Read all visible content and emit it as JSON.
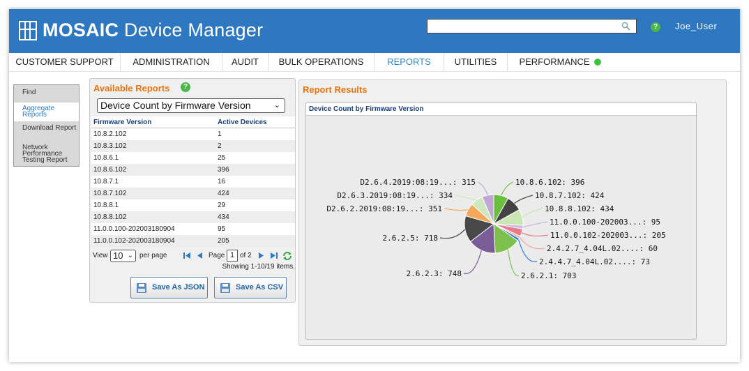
{
  "app": {
    "brand_bold": "MOSAIC",
    "brand_rest": " Device Manager",
    "search_placeholder": "",
    "user": "Joe_User",
    "help_glyph": "?"
  },
  "nav": {
    "items": [
      {
        "label": "CUSTOMER SUPPORT"
      },
      {
        "label": "ADMINISTRATION"
      },
      {
        "label": "AUDIT"
      },
      {
        "label": "BULK OPERATIONS"
      },
      {
        "label": "REPORTS"
      },
      {
        "label": "UTILITIES"
      },
      {
        "label": "PERFORMANCE"
      }
    ],
    "active": "REPORTS",
    "performance_status_color": "#3fc43f"
  },
  "left_menu": {
    "items": [
      {
        "label": "Find"
      },
      {
        "label": "Aggregate Reports"
      },
      {
        "label": "Download Report"
      },
      {
        "label": "Network Performance Testing Report"
      }
    ],
    "selected": "Aggregate Reports"
  },
  "available_reports": {
    "title": "Available Reports",
    "selected_report": "Device Count by Firmware Version",
    "columns": [
      "Firmware Version",
      "Active Devices"
    ],
    "rows": [
      [
        "10.8.2.102",
        "1"
      ],
      [
        "10.8.3.102",
        "2"
      ],
      [
        "10.8.6.1",
        "25"
      ],
      [
        "10.8.6.102",
        "396"
      ],
      [
        "10.8.7.1",
        "16"
      ],
      [
        "10.8.7.102",
        "424"
      ],
      [
        "10.8.8.1",
        "29"
      ],
      [
        "10.8.8.102",
        "434"
      ],
      [
        "11.0.0.100-202003180904",
        "95"
      ],
      [
        "11.0.0.102-202003180904",
        "205"
      ]
    ],
    "pager": {
      "view_label": "View",
      "per_page_value": "10",
      "per_page_label": "per page",
      "page_label": "Page",
      "current_page": "1",
      "of_pages": "of 2",
      "showing": "Showing 1-10/19 items."
    },
    "save_json_label": "Save As JSON",
    "save_csv_label": "Save As CSV"
  },
  "report_results": {
    "title": "Report Results",
    "chart_title": "Device Count by Firmware Version"
  },
  "colors": {
    "header_blue": "#2d78c0",
    "accent_orange": "#e8730c",
    "help_green": "#4cb748"
  },
  "chart_data": {
    "type": "pie",
    "title": "Device Count by Firmware Version",
    "slices": [
      {
        "label": "10.8.6.102",
        "value": 396,
        "color": "#6bbf3f"
      },
      {
        "label": "10.8.7.102",
        "value": 424,
        "color": "#434343"
      },
      {
        "label": "10.8.8.102",
        "value": 434,
        "color": "#c9e6b3"
      },
      {
        "label": "11.0.0.100-202003...",
        "value": 95,
        "color": "#cbb6df"
      },
      {
        "label": "11.0.0.102-202003...",
        "value": 205,
        "color": "#e87a8a"
      },
      {
        "label": "2.4.2.7_4.04L.02....",
        "value": 60,
        "color": "#f2a79d"
      },
      {
        "label": "2.4.4.7_4.04L.02....",
        "value": 73,
        "color": "#2d7fd6"
      },
      {
        "label": "2.6.2.1",
        "value": 703,
        "color": "#7ec04e"
      },
      {
        "label": "2.6.2.3",
        "value": 748,
        "color": "#7a5c98"
      },
      {
        "label": "2.6.2.5",
        "value": 718,
        "color": "#484848"
      },
      {
        "label": "D2.6.2.2019:08:19...",
        "value": 351,
        "color": "#f4a85a"
      },
      {
        "label": "D2.6.3.2019:08:19...",
        "value": 334,
        "color": "#cfe7bf"
      },
      {
        "label": "D2.6.4.2019:08:19...",
        "value": 315,
        "color": "#bfa8d6"
      }
    ]
  }
}
